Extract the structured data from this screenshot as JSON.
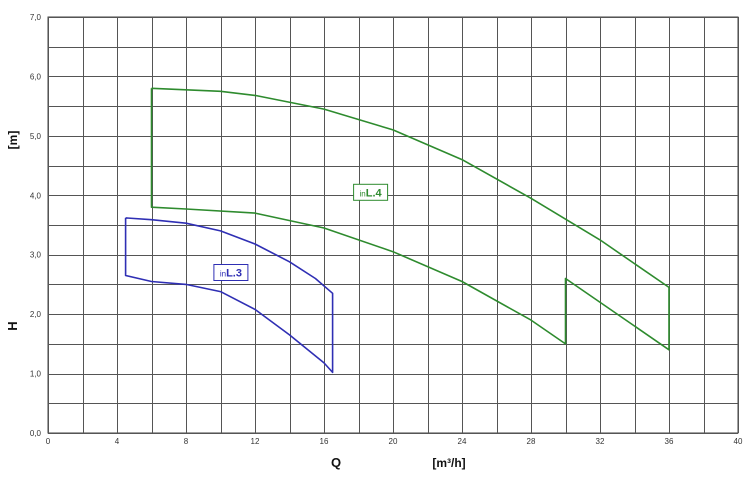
{
  "chart_data": {
    "type": "line",
    "xlabel": "Q",
    "xunit": "[m³/h]",
    "ylabel": "H",
    "yunit": "[m]",
    "xlim": [
      0,
      40
    ],
    "ylim": [
      0,
      7
    ],
    "grid": true,
    "x_ticks": [
      "0",
      "4",
      "8",
      "12",
      "16",
      "20",
      "24",
      "28",
      "32",
      "36",
      "40"
    ],
    "y_ticks": [
      "0,0",
      "1,0",
      "2,0",
      "3,0",
      "4,0",
      "5,0",
      "6,0",
      "7,0"
    ],
    "series": [
      {
        "prefix": "in",
        "name": "L.3",
        "color": "#2f2fb4",
        "points": [
          [
            4.5,
            3.62
          ],
          [
            6,
            3.59
          ],
          [
            8,
            3.53
          ],
          [
            10,
            3.4
          ],
          [
            12,
            3.18
          ],
          [
            14,
            2.88
          ],
          [
            15.5,
            2.6
          ],
          [
            16.5,
            2.35
          ],
          [
            16.5,
            1.02
          ],
          [
            16,
            1.18
          ],
          [
            14,
            1.65
          ],
          [
            12,
            2.08
          ],
          [
            10,
            2.38
          ],
          [
            8,
            2.5
          ],
          [
            6,
            2.55
          ],
          [
            4.5,
            2.65
          ],
          [
            4.5,
            3.62
          ]
        ],
        "label_at": [
          10.6,
          2.7
        ]
      },
      {
        "prefix": "in",
        "name": "L.4",
        "color": "#2e8b2e",
        "points": [
          [
            6,
            5.8
          ],
          [
            10,
            5.75
          ],
          [
            12,
            5.68
          ],
          [
            16,
            5.45
          ],
          [
            20,
            5.1
          ],
          [
            24,
            4.6
          ],
          [
            28,
            3.95
          ],
          [
            32,
            3.25
          ],
          [
            36,
            2.45
          ],
          [
            36,
            1.4
          ],
          [
            30,
            2.6
          ],
          [
            30,
            1.5
          ],
          [
            28,
            1.9
          ],
          [
            24,
            2.55
          ],
          [
            20,
            3.05
          ],
          [
            16,
            3.45
          ],
          [
            12,
            3.7
          ],
          [
            8,
            3.77
          ],
          [
            6,
            3.8
          ],
          [
            6,
            5.8
          ]
        ],
        "label_at": [
          18.7,
          4.05
        ]
      }
    ]
  }
}
